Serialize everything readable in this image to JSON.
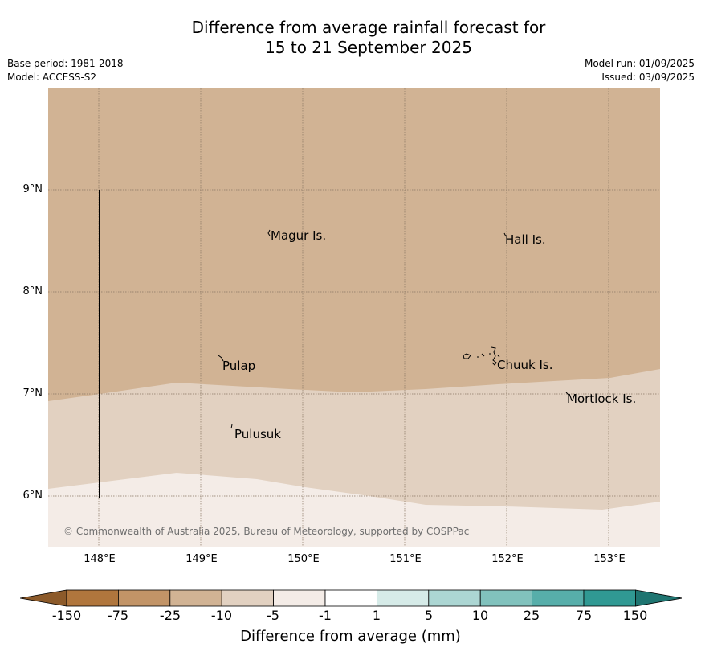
{
  "title_line1": "Difference from average rainfall forecast for",
  "title_line2": "15 to 21 September 2025",
  "base_period": "Base period: 1981-2018",
  "model": "Model: ACCESS-S2",
  "model_run": "Model run: 01/09/2025",
  "issued": "Issued: 03/09/2025",
  "map": {
    "lat_labels": [
      "9°N",
      "8°N",
      "7°N",
      "6°N"
    ],
    "lon_labels": [
      "148°E",
      "149°E",
      "150°E",
      "151°E",
      "152°E",
      "153°E"
    ],
    "places": [
      "Magur Is.",
      "Hall Is.",
      "Pulap",
      "Chuuk Is.",
      "Mortlock Is.",
      "Pulusuk"
    ],
    "zone_categories": [
      "-25",
      "-10",
      "-5"
    ],
    "zone_colors": [
      "#d1b394",
      "#e2d1c1",
      "#f4ece7"
    ],
    "copyright": "© Commonwealth of Australia 2025, Bureau of Meteorology, supported by COSPPac"
  },
  "colorbar": {
    "ticks": [
      "-150",
      "-75",
      "-25",
      "-10",
      "-5",
      "-1",
      "1",
      "5",
      "10",
      "25",
      "75",
      "150"
    ],
    "colors": [
      "#8c5a2a",
      "#b0763d",
      "#c29467",
      "#d1b394",
      "#e2d1c1",
      "#f4ece7",
      "#ffffff",
      "#d6ebe8",
      "#acd6d3",
      "#81c2bd",
      "#57aeaa",
      "#309993",
      "#1f7571"
    ],
    "label": "Difference from average (mm)"
  }
}
